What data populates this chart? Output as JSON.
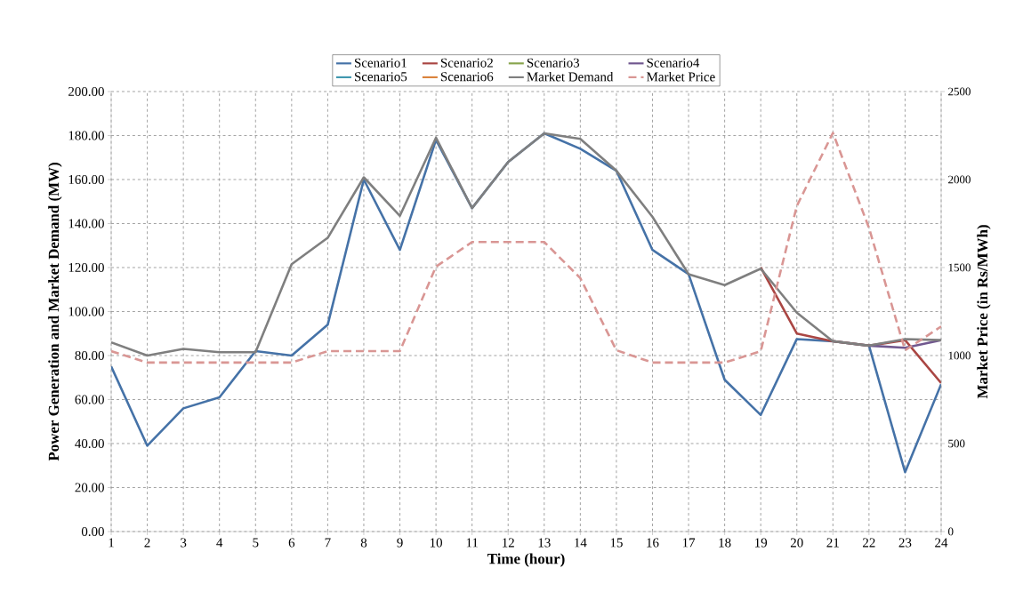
{
  "chart_data": {
    "type": "line",
    "xlabel": "Time (hour)",
    "ylabel": "Power Generation and Market Demand (MW)",
    "y2label": "Market Price (in Rs/MWh)",
    "categories": [
      "1",
      "2",
      "3",
      "4",
      "5",
      "6",
      "7",
      "8",
      "9",
      "10",
      "11",
      "12",
      "13",
      "14",
      "15",
      "16",
      "17",
      "18",
      "19",
      "20",
      "21",
      "22",
      "23",
      "24"
    ],
    "series": [
      {
        "name": "Scenario1",
        "color": "#4572a7",
        "values": [
          75,
          39,
          56,
          61,
          82,
          80,
          94,
          160,
          128,
          178,
          147,
          168,
          181,
          174,
          164,
          128,
          117,
          69,
          53,
          87.5,
          86.5,
          84.5,
          27,
          67
        ]
      },
      {
        "name": "Scenario2",
        "color": "#aa4643",
        "values": [
          null,
          null,
          null,
          null,
          null,
          null,
          null,
          null,
          null,
          null,
          null,
          null,
          null,
          null,
          null,
          null,
          null,
          null,
          120,
          90,
          86.5,
          84.5,
          87,
          67.5
        ]
      },
      {
        "name": "Scenario3",
        "color": "#89a54e",
        "values": [
          null,
          null,
          null,
          null,
          null,
          null,
          null,
          null,
          null,
          null,
          null,
          null,
          null,
          null,
          null,
          null,
          null,
          null,
          null,
          null,
          null,
          null,
          null,
          null
        ]
      },
      {
        "name": "Scenario4",
        "color": "#71588f",
        "values": [
          null,
          null,
          null,
          null,
          null,
          null,
          null,
          null,
          null,
          null,
          null,
          null,
          null,
          null,
          null,
          null,
          null,
          null,
          null,
          null,
          null,
          84.5,
          83.5,
          87
        ]
      },
      {
        "name": "Scenario5",
        "color": "#4198af",
        "values": [
          null,
          null,
          null,
          null,
          null,
          null,
          null,
          null,
          null,
          null,
          null,
          null,
          null,
          null,
          null,
          null,
          null,
          null,
          null,
          null,
          null,
          null,
          null,
          null
        ]
      },
      {
        "name": "Scenario6",
        "color": "#db843d",
        "values": [
          null,
          null,
          null,
          null,
          null,
          null,
          null,
          null,
          null,
          null,
          null,
          null,
          null,
          null,
          null,
          null,
          null,
          null,
          null,
          null,
          null,
          null,
          null,
          null
        ]
      },
      {
        "name": "Market Demand",
        "color": "#7f7f7f",
        "values": [
          86,
          80,
          83,
          81.5,
          81.5,
          121.5,
          133.5,
          161,
          143.5,
          179,
          147,
          168,
          181,
          178.5,
          164,
          143,
          117,
          112,
          119.5,
          99.5,
          86.5,
          84.5,
          87.5,
          87
        ]
      },
      {
        "name": "Market Price",
        "color": "#d99694",
        "axis": "y2",
        "line_style": "dashed",
        "values": [
          1025,
          960,
          960,
          960,
          960,
          960,
          1025,
          1025,
          1025,
          1505,
          1645,
          1645,
          1645,
          1440,
          1030,
          960,
          960,
          960,
          1025,
          1850,
          2265,
          1725,
          1030,
          1165
        ]
      }
    ],
    "ylim": [
      0,
      200
    ],
    "yticks": [
      {
        "value": 0,
        "label": "0.00"
      },
      {
        "value": 20,
        "label": "20.00"
      },
      {
        "value": 40,
        "label": "40.00"
      },
      {
        "value": 60,
        "label": "60.00"
      },
      {
        "value": 80,
        "label": "80.00"
      },
      {
        "value": 100,
        "label": "100.00"
      },
      {
        "value": 120,
        "label": "120.00"
      },
      {
        "value": 140,
        "label": "140.00"
      },
      {
        "value": 160,
        "label": "160.00"
      },
      {
        "value": 180,
        "label": "180.00"
      },
      {
        "value": 200,
        "label": "200.00"
      }
    ],
    "y2lim": [
      0,
      2500
    ],
    "y2ticks": [
      0,
      500,
      1000,
      1500,
      2000,
      2500
    ],
    "grid": true,
    "legend": "top",
    "marker": "none",
    "line_style": "solid"
  }
}
